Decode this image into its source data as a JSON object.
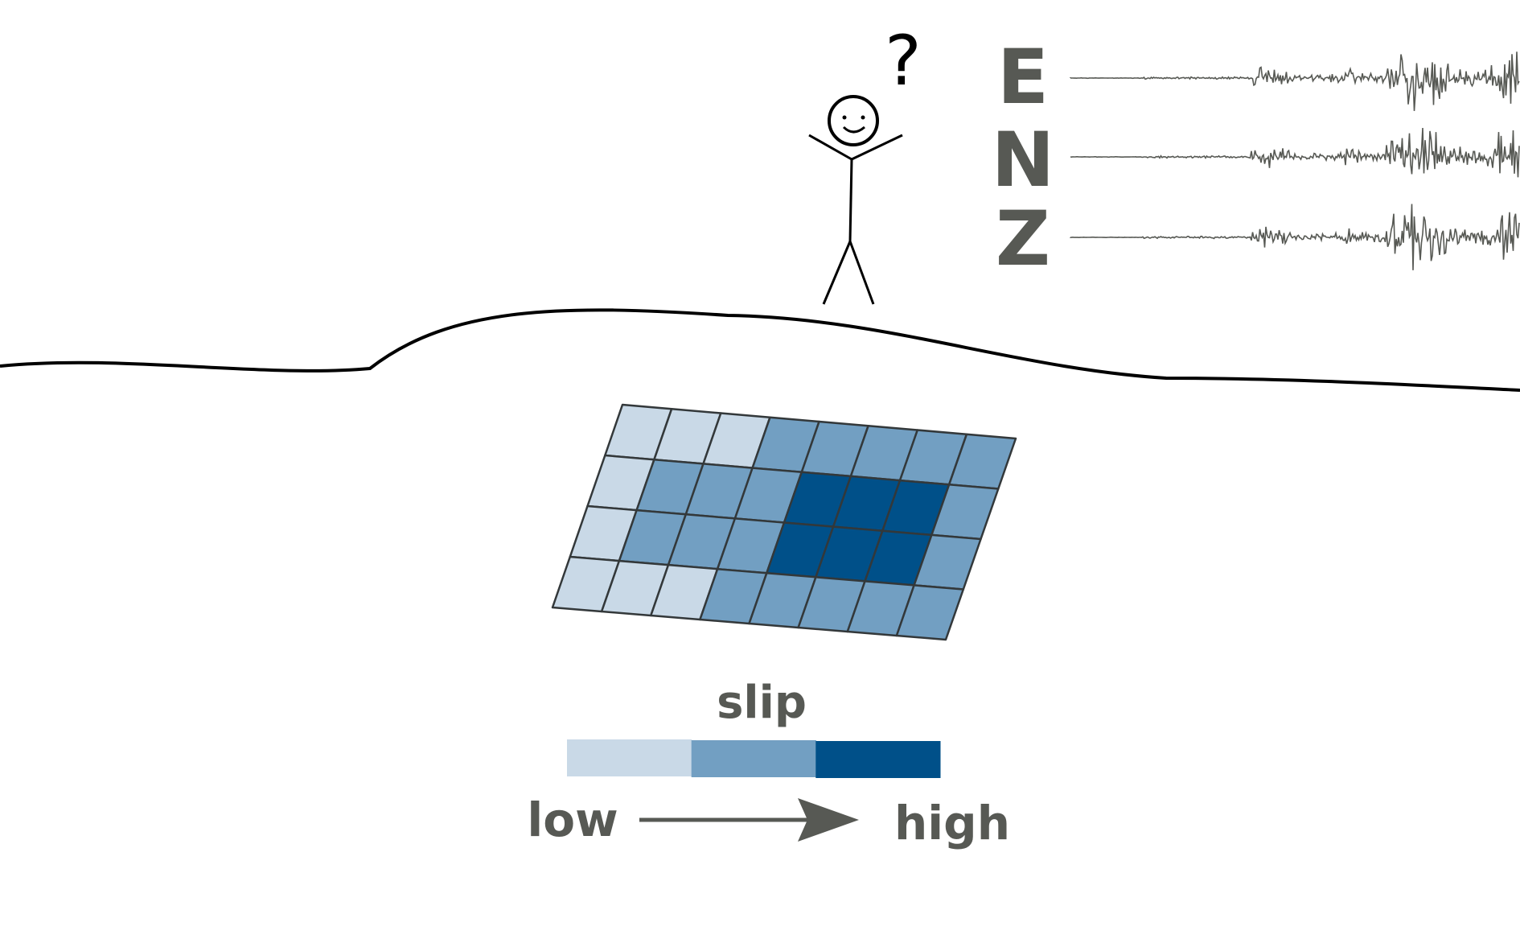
{
  "station": {
    "question_mark": "?",
    "components": [
      {
        "label": "E",
        "waveform_seed": 3
      },
      {
        "label": "N",
        "waveform_seed": 7
      },
      {
        "label": "Z",
        "waveform_seed": 11
      }
    ]
  },
  "fault": {
    "rows": 4,
    "cols": 8,
    "slip_levels": [
      [
        0,
        0,
        0,
        1,
        1,
        1,
        1,
        1
      ],
      [
        0,
        1,
        1,
        1,
        2,
        2,
        2,
        1
      ],
      [
        0,
        1,
        1,
        1,
        2,
        2,
        2,
        1
      ],
      [
        0,
        0,
        0,
        1,
        1,
        1,
        1,
        1
      ]
    ]
  },
  "legend": {
    "title": "slip",
    "low_label": "low",
    "high_label": "high",
    "levels": [
      "low",
      "medium",
      "high"
    ]
  },
  "colors": {
    "slip_low": "#c9d9e7",
    "slip_medium": "#729fc2",
    "slip_high": "#005089",
    "grid_line": "#33383a",
    "text_gray": "#575954",
    "waveform": "#575954",
    "ground": "#000000",
    "figure": "#000000"
  }
}
